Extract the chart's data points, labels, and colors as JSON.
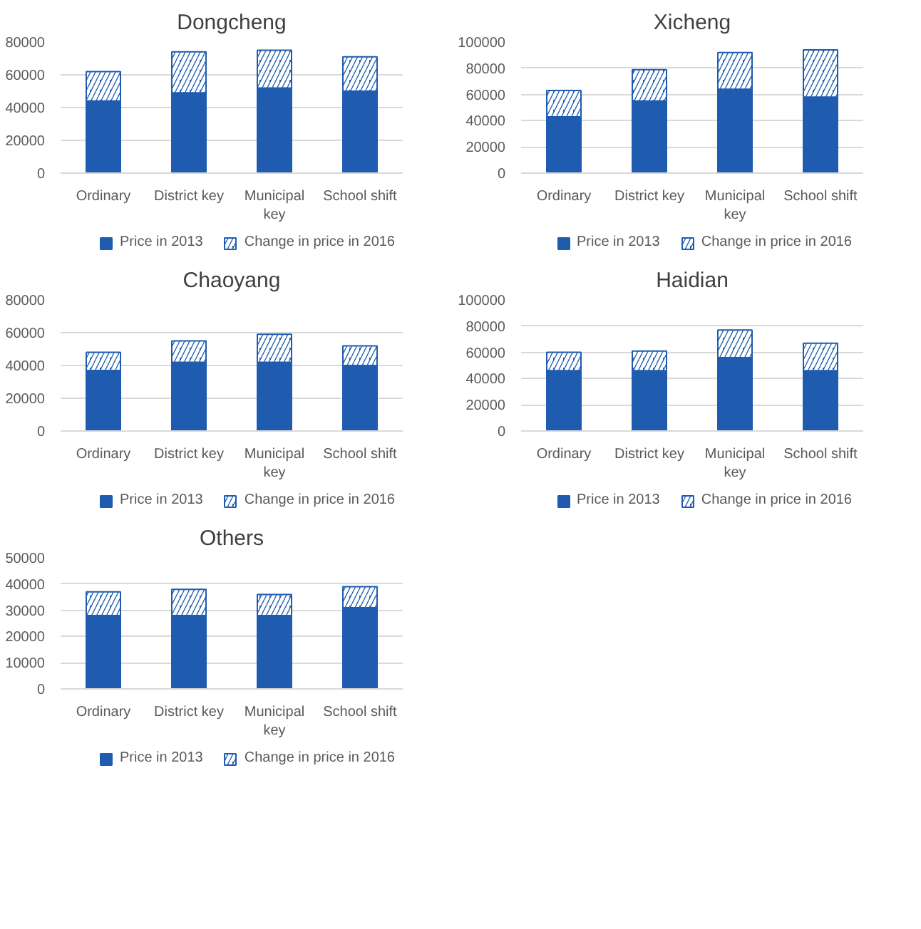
{
  "chart_data": [
    {
      "type": "bar",
      "stacked": true,
      "title": "Dongcheng",
      "categories": [
        "Ordinary",
        "District key",
        "Municipal key",
        "School shift"
      ],
      "ylim": [
        0,
        80000
      ],
      "yticks": [
        0,
        20000,
        40000,
        60000,
        80000
      ],
      "grid": "y",
      "legend": "bottom",
      "series": [
        {
          "name": "Price in 2013",
          "color": "#1f5cb0",
          "values": [
            44000,
            49000,
            52000,
            50000
          ]
        },
        {
          "name": "Change in price in 2016",
          "color": "#1f5cb0",
          "values": [
            18000,
            25000,
            23000,
            21000
          ]
        }
      ]
    },
    {
      "type": "bar",
      "stacked": true,
      "title": "Xicheng",
      "categories": [
        "Ordinary",
        "District key",
        "Municipal key",
        "School shift"
      ],
      "ylim": [
        0,
        100000
      ],
      "yticks": [
        0,
        20000,
        40000,
        60000,
        80000,
        100000
      ],
      "grid": "y",
      "legend": "bottom",
      "series": [
        {
          "name": "Price in 2013",
          "color": "#1f5cb0",
          "values": [
            43000,
            55000,
            64000,
            58000
          ]
        },
        {
          "name": "Change in price in 2016",
          "color": "#1f5cb0",
          "values": [
            20000,
            24000,
            28000,
            36000
          ]
        }
      ]
    },
    {
      "type": "bar",
      "stacked": true,
      "title": "Chaoyang",
      "categories": [
        "Ordinary",
        "District key",
        "Municipal key",
        "School shift"
      ],
      "ylim": [
        0,
        80000
      ],
      "yticks": [
        0,
        20000,
        40000,
        60000,
        80000
      ],
      "grid": "y",
      "legend": "bottom",
      "series": [
        {
          "name": "Price in 2013",
          "color": "#1f5cb0",
          "values": [
            37000,
            42000,
            42000,
            40000
          ]
        },
        {
          "name": "Change in price in 2016",
          "color": "#1f5cb0",
          "values": [
            11000,
            13000,
            17000,
            12000
          ]
        }
      ]
    },
    {
      "type": "bar",
      "stacked": true,
      "title": "Haidian",
      "categories": [
        "Ordinary",
        "District key",
        "Municipal key",
        "School shift"
      ],
      "ylim": [
        0,
        100000
      ],
      "yticks": [
        0,
        20000,
        40000,
        60000,
        80000,
        100000
      ],
      "grid": "y",
      "legend": "bottom",
      "series": [
        {
          "name": "Price in 2013",
          "color": "#1f5cb0",
          "values": [
            46000,
            46000,
            56000,
            46000
          ]
        },
        {
          "name": "Change in price in 2016",
          "color": "#1f5cb0",
          "values": [
            14000,
            15000,
            21000,
            21000
          ]
        }
      ]
    },
    {
      "type": "bar",
      "stacked": true,
      "title": "Others",
      "categories": [
        "Ordinary",
        "District key",
        "Municipal key",
        "School shift"
      ],
      "ylim": [
        0,
        50000
      ],
      "yticks": [
        0,
        10000,
        20000,
        30000,
        40000,
        50000
      ],
      "grid": "y",
      "legend": "bottom",
      "series": [
        {
          "name": "Price in 2013",
          "color": "#1f5cb0",
          "values": [
            28000,
            28000,
            28000,
            31000
          ]
        },
        {
          "name": "Change in price in 2016",
          "color": "#1f5cb0",
          "values": [
            9000,
            10000,
            8000,
            8000
          ]
        }
      ]
    }
  ]
}
